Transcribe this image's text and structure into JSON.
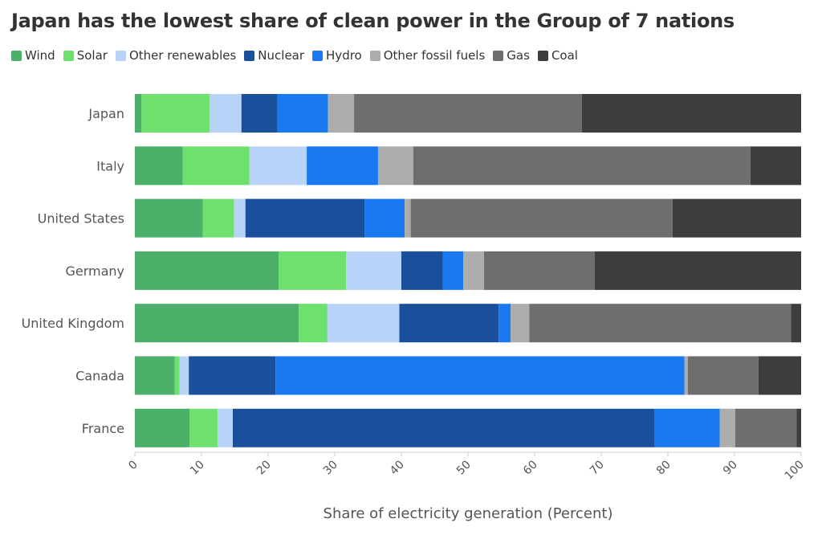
{
  "title": "Japan has the lowest share of clean power in the Group of 7 nations",
  "chart_data": {
    "type": "bar",
    "orientation": "horizontal",
    "stacked": true,
    "title": "Japan has the lowest share of clean power in the Group of 7 nations",
    "xlabel": "Share of electricity generation (Percent)",
    "ylabel": "",
    "xlim": [
      0,
      100
    ],
    "xticks": [
      "0",
      "10",
      "20",
      "30",
      "40",
      "50",
      "60",
      "70",
      "80",
      "90",
      "100"
    ],
    "legend_position": "top-left",
    "grid": false,
    "categories": [
      "Japan",
      "Italy",
      "United States",
      "Germany",
      "United Kingdom",
      "Canada",
      "France"
    ],
    "series": [
      {
        "name": "Wind",
        "color": "#4caf6a",
        "values": [
          1,
          7.2,
          10.2,
          21.6,
          24.6,
          6,
          8.2
        ]
      },
      {
        "name": "Solar",
        "color": "#6ee06d",
        "values": [
          10.2,
          10,
          4.7,
          10.1,
          4.3,
          0.7,
          4.2
        ]
      },
      {
        "name": "Other renewables",
        "color": "#b8d3f7",
        "values": [
          4.8,
          8.6,
          1.7,
          8.3,
          10.8,
          1.4,
          2.3
        ]
      },
      {
        "name": "Nuclear",
        "color": "#1a4f9c",
        "values": [
          5.4,
          0,
          17.9,
          6.2,
          14.9,
          13,
          63.3
        ]
      },
      {
        "name": "Hydro",
        "color": "#1a78f0",
        "values": [
          7.6,
          10.7,
          6,
          3.1,
          1.8,
          61.4,
          9.8
        ]
      },
      {
        "name": "Other fossil fuels",
        "color": "#adadad",
        "values": [
          3.9,
          5.3,
          0.9,
          3.1,
          2.8,
          0.5,
          2.3
        ]
      },
      {
        "name": "Gas",
        "color": "#6e6e6e",
        "values": [
          34.2,
          50.6,
          39.3,
          16.6,
          39.3,
          10.6,
          9.2
        ]
      },
      {
        "name": "Coal",
        "color": "#3d3d3d",
        "values": [
          32.9,
          7.6,
          19.3,
          31,
          1.5,
          6.4,
          0.7
        ]
      }
    ]
  }
}
